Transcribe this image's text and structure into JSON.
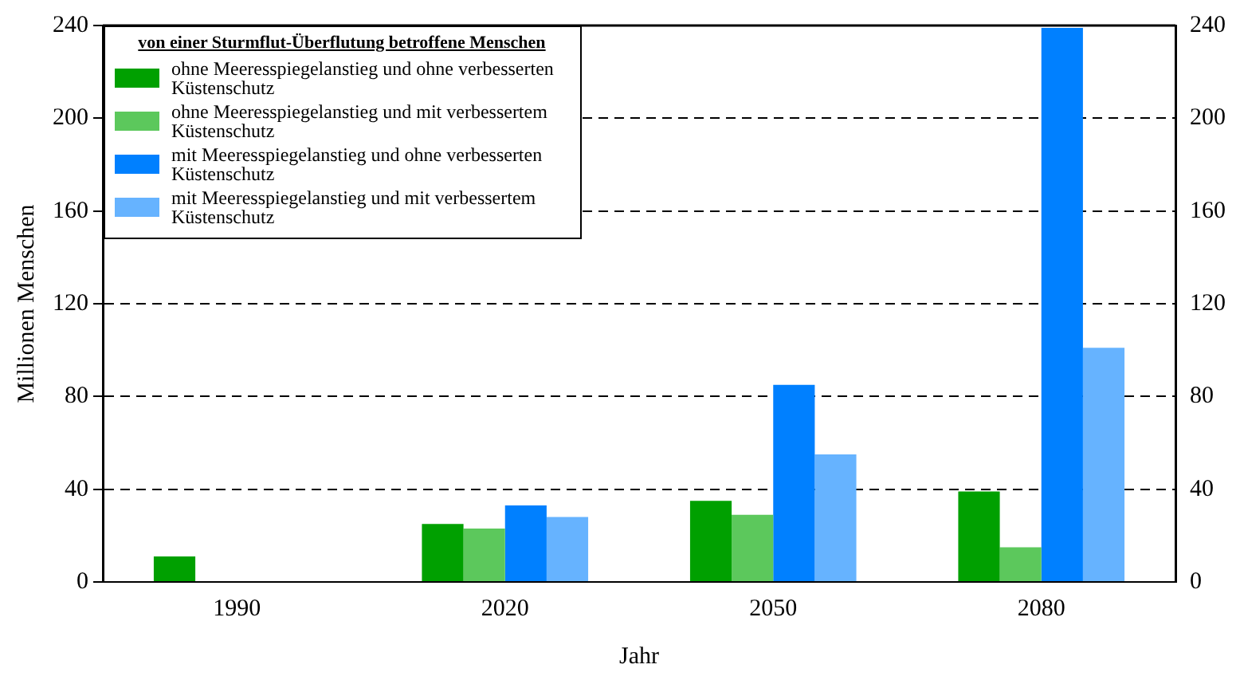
{
  "chart_data": {
    "type": "bar",
    "xlabel": "Jahr",
    "ylabel": "Millionen Menschen",
    "legend_title": "von einer Sturmflut-Überflutung betroffene Menschen",
    "categories": [
      "1990",
      "2020",
      "2050",
      "2080"
    ],
    "series": [
      {
        "name": "ohne Meeresspiegelanstieg und ohne verbesserten Küstenschutz",
        "color": "#00a000",
        "values": [
          11,
          25,
          35,
          39
        ]
      },
      {
        "name": "ohne Meeresspiegelanstieg und mit verbessertem Küstenschutz",
        "color": "#5cc85c",
        "values": [
          null,
          23,
          29,
          15
        ]
      },
      {
        "name": "mit Meeresspiegelanstieg und ohne verbesserten Küstenschutz",
        "color": "#0080ff",
        "values": [
          null,
          33,
          85,
          239
        ]
      },
      {
        "name": "mit Meeresspiegelanstieg und mit verbessertem Küstenschutz",
        "color": "#66b3ff",
        "values": [
          null,
          28,
          55,
          101
        ]
      }
    ],
    "ylim": [
      0,
      240
    ],
    "yticks": [
      0,
      40,
      80,
      120,
      160,
      200,
      240
    ],
    "y2lim": [
      0,
      240
    ],
    "y2ticks": [
      0,
      40,
      80,
      120,
      160,
      200,
      240
    ],
    "grid": "y",
    "line_style": "dashed",
    "legend": "top left"
  }
}
